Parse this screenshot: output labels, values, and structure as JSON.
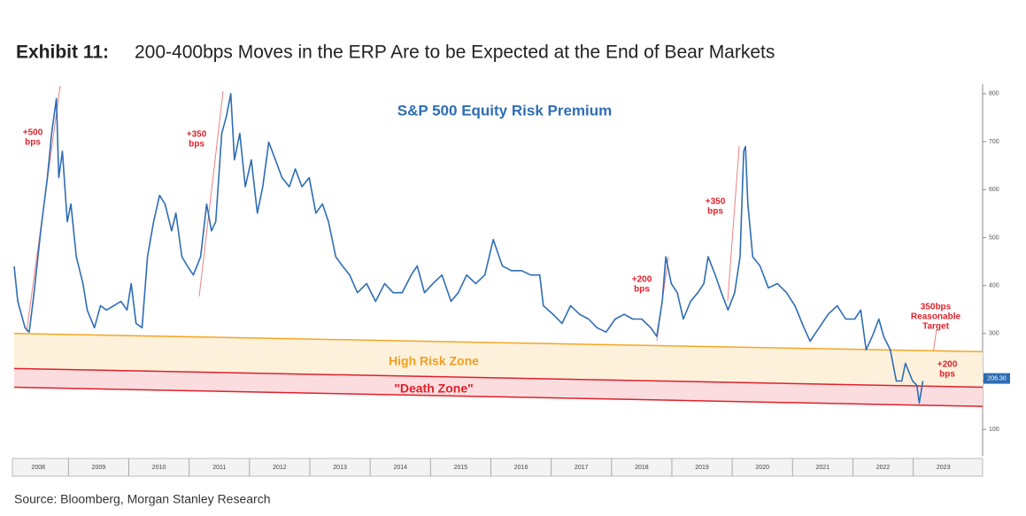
{
  "chart_data": {
    "type": "line",
    "title": "Exhibit 11:",
    "title_rest": "200-400bps Moves in the ERP Are to be Expected at the End of Bear Markets",
    "subtitle": "S&P 500 Equity Risk Premium",
    "source": "Source: Bloomberg, Morgan Stanley Research",
    "xlim": [
      2008.1,
      2024.15
    ],
    "ylim": [
      45,
      820
    ],
    "yticks": [
      100,
      200,
      300,
      400,
      500,
      600,
      700,
      800
    ],
    "xticks": [
      {
        "value": 2008.5,
        "label": "2008"
      },
      {
        "value": 2009.5,
        "label": "2009"
      },
      {
        "value": 2010.5,
        "label": "2010"
      },
      {
        "value": 2011.5,
        "label": "2011"
      },
      {
        "value": 2012.5,
        "label": "2012"
      },
      {
        "value": 2013.5,
        "label": "2013"
      },
      {
        "value": 2014.5,
        "label": "2014"
      },
      {
        "value": 2015.5,
        "label": "2015"
      },
      {
        "value": 2016.5,
        "label": "2016"
      },
      {
        "value": 2017.5,
        "label": "2017"
      },
      {
        "value": 2018.5,
        "label": "2018"
      },
      {
        "value": 2019.5,
        "label": "2019"
      },
      {
        "value": 2020.5,
        "label": "2020"
      },
      {
        "value": 2021.5,
        "label": "2021"
      },
      {
        "value": 2022.5,
        "label": "2022"
      },
      {
        "value": 2023.5,
        "label": "2023"
      }
    ],
    "zones": [
      {
        "name": "High Risk Zone",
        "top": [
          300,
          262
        ],
        "bottom": [
          227,
          188
        ],
        "color": "#f5a623",
        "fill": "#fdf1dc"
      },
      {
        "name": "\"Death Zone\"",
        "top": [
          227,
          188
        ],
        "bottom": [
          188,
          148
        ],
        "color": "#e0202a",
        "fill": "#fbdde0"
      }
    ],
    "annotations": [
      {
        "lines": [
          "+500",
          "bps"
        ]
      },
      {
        "lines": [
          "+350",
          "bps"
        ]
      },
      {
        "lines": [
          "+200",
          "bps"
        ]
      },
      {
        "lines": [
          "+350",
          "bps"
        ]
      },
      {
        "lines": [
          "350bps",
          "Reasonable",
          "Target"
        ]
      },
      {
        "lines": [
          "+200",
          "bps"
        ]
      }
    ],
    "end_label": {
      "value": 206.3,
      "label": "206.30"
    },
    "series": [
      {
        "name": "S&P 500 Equity Risk Premium",
        "color": "#2e6db4",
        "x": [
          2008.1,
          2008.16,
          2008.28,
          2008.35,
          2008.43,
          2008.54,
          2008.65,
          2008.72,
          2008.8,
          2008.84,
          2008.9,
          2008.98,
          2009.04,
          2009.13,
          2009.24,
          2009.31,
          2009.43,
          2009.53,
          2009.63,
          2009.75,
          2009.87,
          2009.97,
          2010.04,
          2010.12,
          2010.22,
          2010.31,
          2010.41,
          2010.51,
          2010.6,
          2010.71,
          2010.78,
          2010.88,
          2010.97,
          2011.07,
          2011.19,
          2011.29,
          2011.37,
          2011.44,
          2011.54,
          2011.62,
          2011.69,
          2011.75,
          2011.84,
          2011.93,
          2012.03,
          2012.13,
          2012.22,
          2012.32,
          2012.43,
          2012.54,
          2012.66,
          2012.76,
          2012.87,
          2012.99,
          2013.1,
          2013.21,
          2013.31,
          2013.43,
          2013.54,
          2013.66,
          2013.79,
          2013.94,
          2014.09,
          2014.24,
          2014.38,
          2014.53,
          2014.68,
          2014.78,
          2014.9,
          2015.04,
          2015.19,
          2015.34,
          2015.46,
          2015.6,
          2015.75,
          2015.9,
          2016.04,
          2016.19,
          2016.34,
          2016.51,
          2016.66,
          2016.81,
          2016.87,
          2017.03,
          2017.18,
          2017.32,
          2017.47,
          2017.62,
          2017.76,
          2017.91,
          2018.06,
          2018.21,
          2018.35,
          2018.5,
          2018.65,
          2018.75,
          2018.84,
          2018.9,
          2018.99,
          2019.09,
          2019.19,
          2019.31,
          2019.43,
          2019.53,
          2019.6,
          2019.72,
          2019.82,
          2019.93,
          2020.04,
          2020.13,
          2020.19,
          2020.22,
          2020.26,
          2020.34,
          2020.46,
          2020.6,
          2020.75,
          2020.9,
          2021.04,
          2021.19,
          2021.29,
          2021.44,
          2021.59,
          2021.74,
          2021.88,
          2022.03,
          2022.13,
          2022.22,
          2022.32,
          2022.43,
          2022.51,
          2022.62,
          2022.72,
          2022.81,
          2022.87,
          2022.99,
          2023.06,
          2023.1,
          2023.16
        ],
        "values": [
          440,
          367,
          312,
          303,
          385,
          514,
          625,
          717,
          790,
          625,
          680,
          533,
          570,
          460,
          404,
          349,
          312,
          358,
          349,
          358,
          367,
          349,
          404,
          321,
          312,
          460,
          533,
          588,
          570,
          514,
          551,
          460,
          441,
          422,
          460,
          570,
          514,
          533,
          717,
          754,
          800,
          662,
          717,
          606,
          662,
          551,
          606,
          699,
          662,
          625,
          606,
          643,
          606,
          625,
          551,
          570,
          533,
          460,
          441,
          422,
          385,
          404,
          367,
          404,
          385,
          385,
          422,
          441,
          385,
          404,
          422,
          367,
          385,
          422,
          404,
          422,
          496,
          441,
          431,
          431,
          422,
          422,
          358,
          340,
          321,
          358,
          340,
          330,
          312,
          303,
          330,
          340,
          330,
          330,
          312,
          294,
          367,
          460,
          404,
          385,
          330,
          367,
          385,
          404,
          460,
          422,
          385,
          349,
          385,
          460,
          680,
          690,
          570,
          460,
          441,
          395,
          404,
          385,
          358,
          312,
          284,
          312,
          340,
          358,
          330,
          330,
          349,
          266,
          294,
          330,
          294,
          266,
          201,
          201,
          238,
          201,
          192,
          155,
          201
        ]
      }
    ]
  }
}
